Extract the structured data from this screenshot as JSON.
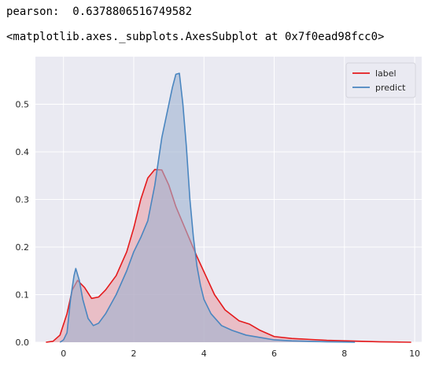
{
  "output": {
    "pearson_line": "pearson:  0.6378806516749582",
    "repr_line": "<matplotlib.axes._subplots.AxesSubplot at 0x7f0ead98fcc0>"
  },
  "chart_data": {
    "type": "area",
    "xlim": [
      -0.8,
      10.2
    ],
    "ylim": [
      0,
      0.6
    ],
    "x_ticks": [
      0,
      2,
      4,
      6,
      8,
      10
    ],
    "y_ticks": [
      0.0,
      0.1,
      0.2,
      0.3,
      0.4,
      0.5
    ],
    "y_tick_labels": [
      "0.0",
      "0.1",
      "0.2",
      "0.3",
      "0.4",
      "0.5"
    ],
    "x_tick_labels": [
      "0",
      "2",
      "4",
      "6",
      "8",
      "10"
    ],
    "grid": true,
    "background": "#eaeaf2",
    "legend_position": "top-right",
    "series": [
      {
        "name": "label",
        "color": "#e41a1c",
        "fill": "#e8a0a8",
        "x": [
          -0.5,
          -0.3,
          -0.1,
          0.1,
          0.25,
          0.4,
          0.6,
          0.8,
          1.0,
          1.2,
          1.5,
          1.8,
          2.0,
          2.2,
          2.4,
          2.6,
          2.8,
          3.0,
          3.2,
          3.4,
          3.6,
          3.8,
          4.0,
          4.3,
          4.6,
          5.0,
          5.3,
          5.6,
          6.0,
          6.5,
          7.0,
          7.5,
          8.0,
          8.5,
          9.0,
          9.5,
          9.9
        ],
        "y": [
          0.0,
          0.002,
          0.015,
          0.06,
          0.11,
          0.13,
          0.115,
          0.092,
          0.095,
          0.11,
          0.14,
          0.19,
          0.24,
          0.3,
          0.345,
          0.363,
          0.362,
          0.33,
          0.285,
          0.25,
          0.215,
          0.18,
          0.148,
          0.1,
          0.068,
          0.045,
          0.038,
          0.025,
          0.012,
          0.008,
          0.006,
          0.004,
          0.003,
          0.002,
          0.001,
          0.0005,
          0.0
        ]
      },
      {
        "name": "predict",
        "color": "#4a86c0",
        "fill": "#9fb3d1",
        "x": [
          -0.1,
          0.0,
          0.1,
          0.2,
          0.3,
          0.35,
          0.45,
          0.55,
          0.7,
          0.85,
          1.0,
          1.2,
          1.5,
          1.8,
          2.0,
          2.2,
          2.4,
          2.6,
          2.8,
          3.0,
          3.1,
          3.2,
          3.3,
          3.4,
          3.5,
          3.6,
          3.7,
          3.8,
          3.9,
          4.0,
          4.2,
          4.5,
          4.8,
          5.2,
          5.6,
          6.0,
          6.5,
          7.0,
          7.5,
          8.0,
          8.3
        ],
        "y": [
          0.0,
          0.005,
          0.02,
          0.09,
          0.14,
          0.155,
          0.13,
          0.09,
          0.05,
          0.035,
          0.04,
          0.06,
          0.1,
          0.15,
          0.19,
          0.22,
          0.255,
          0.33,
          0.43,
          0.5,
          0.535,
          0.563,
          0.565,
          0.5,
          0.41,
          0.3,
          0.22,
          0.16,
          0.12,
          0.09,
          0.06,
          0.035,
          0.025,
          0.015,
          0.01,
          0.005,
          0.003,
          0.002,
          0.001,
          0.0005,
          0.0
        ]
      }
    ]
  }
}
